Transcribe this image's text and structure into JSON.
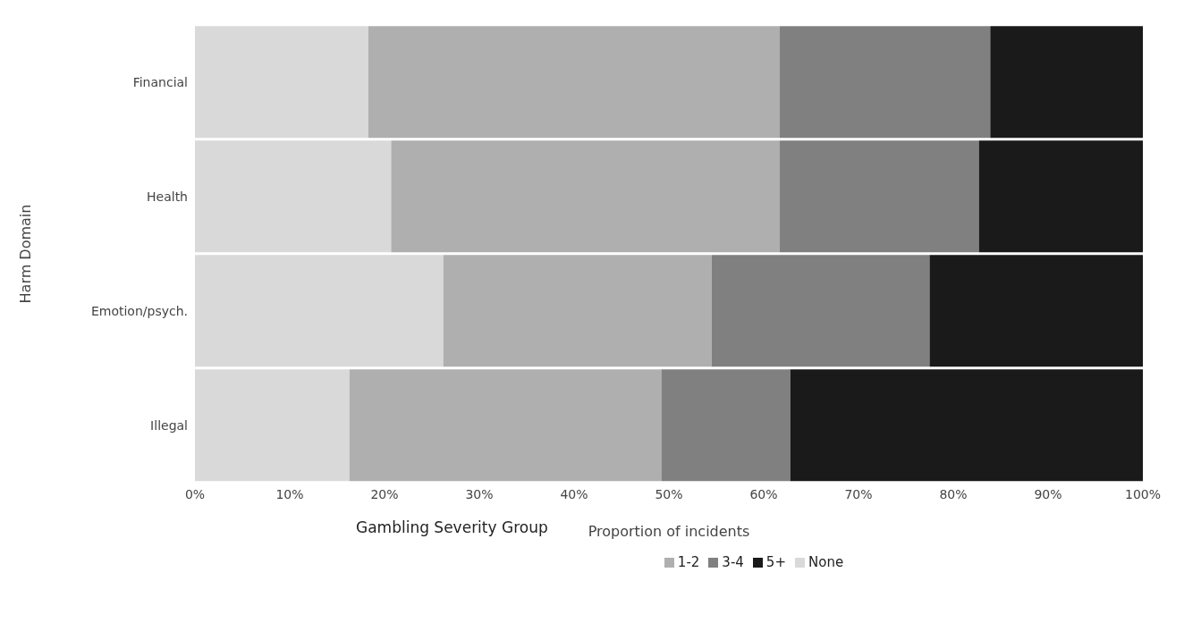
{
  "chart_data": {
    "type": "bar",
    "orientation": "horizontal",
    "stacked": true,
    "categories": [
      "Financial",
      "Health",
      "Emotion/psych.",
      "Illegal"
    ],
    "series": [
      {
        "name": "None",
        "color": "#d9d9d9",
        "values": [
          18.3,
          20.7,
          26.2,
          16.3
        ]
      },
      {
        "name": "1-2",
        "color": "#afafaf",
        "values": [
          43.4,
          41,
          28.3,
          32.9
        ]
      },
      {
        "name": "3-4",
        "color": "#808080",
        "values": [
          22.2,
          21,
          23,
          13.6
        ]
      },
      {
        "name": "5+",
        "color": "#1a1a1a",
        "values": [
          16.1,
          17.3,
          22.5,
          37.2
        ]
      }
    ],
    "xlim": [
      0,
      100
    ],
    "xticks": [
      {
        "value": 0,
        "label": "0%"
      },
      {
        "value": 10,
        "label": "10%"
      },
      {
        "value": 20,
        "label": "20%"
      },
      {
        "value": 30,
        "label": "30%"
      },
      {
        "value": 40,
        "label": "40%"
      },
      {
        "value": 50,
        "label": "50%"
      },
      {
        "value": 60,
        "label": "60%"
      },
      {
        "value": 70,
        "label": "70%"
      },
      {
        "value": 80,
        "label": "80%"
      },
      {
        "value": 90,
        "label": "90%"
      },
      {
        "value": 100,
        "label": "100%"
      }
    ],
    "xlabel": "Proportion of incidents",
    "ylabel": "Harm Domain",
    "legend_title": "Gambling Severity Group",
    "legend": "bottom",
    "grid": false
  }
}
